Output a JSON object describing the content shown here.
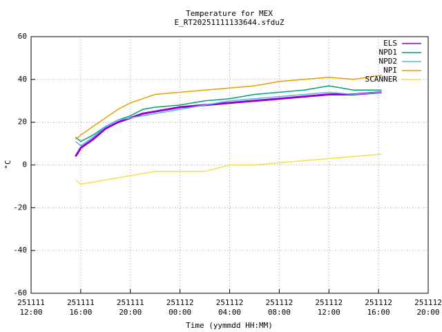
{
  "chart_data": {
    "type": "line",
    "title": "Temperature for MEX",
    "subtitle": "E_RT20251111133644.sfduZ",
    "x_label": "Time (yymmdd HH:MM)",
    "y_label": "°C",
    "x": [
      "251111 15:35",
      "251111 16:00",
      "251111 17:00",
      "251111 18:00",
      "251111 19:00",
      "251111 20:00",
      "251111 21:00",
      "251111 22:00",
      "251112 00:00",
      "251112 02:00",
      "251112 04:00",
      "251112 06:00",
      "251112 08:00",
      "251112 10:00",
      "251112 12:00",
      "251112 14:00",
      "251112 16:15"
    ],
    "series": [
      {
        "name": "ELS",
        "color": "#9400d3",
        "values": [
          4,
          8,
          12,
          17,
          20,
          22,
          24,
          25,
          27,
          28,
          29,
          30,
          31,
          32,
          33,
          33,
          34
        ]
      },
      {
        "name": "NPD1",
        "color": "#009e73",
        "values": [
          13,
          11,
          14,
          18,
          21,
          23,
          26,
          27,
          28,
          30,
          31,
          33,
          34,
          35,
          37,
          35,
          35
        ]
      },
      {
        "name": "NPD2",
        "color": "#56b4e9",
        "values": [
          11,
          9,
          13,
          18,
          21,
          22,
          23,
          24,
          26,
          28,
          30,
          31,
          32,
          33,
          34,
          33,
          34
        ]
      },
      {
        "name": "NPI",
        "color": "#e69f00",
        "values": [
          12,
          14,
          18,
          22,
          26,
          29,
          31,
          33,
          34,
          35,
          36,
          37,
          39,
          40,
          41,
          40,
          42
        ]
      },
      {
        "name": "SCANNER",
        "color": "#f0e442",
        "values": [
          -7,
          -9,
          -8,
          -7,
          -6,
          -5,
          -4,
          -3,
          -3,
          -3,
          0,
          0,
          1,
          2,
          3,
          4,
          5
        ]
      }
    ],
    "xlim": [
      "251111 12:00",
      "251112 20:00"
    ],
    "xticks": [
      "251111 12:00",
      "251111 16:00",
      "251111 20:00",
      "251112 00:00",
      "251112 04:00",
      "251112 08:00",
      "251112 12:00",
      "251112 16:00",
      "251112 20:00"
    ],
    "ylim": [
      -60,
      60
    ],
    "yticks": [
      -60,
      -40,
      -20,
      0,
      20,
      40,
      60
    ],
    "grid": true,
    "legend": "top-right"
  }
}
